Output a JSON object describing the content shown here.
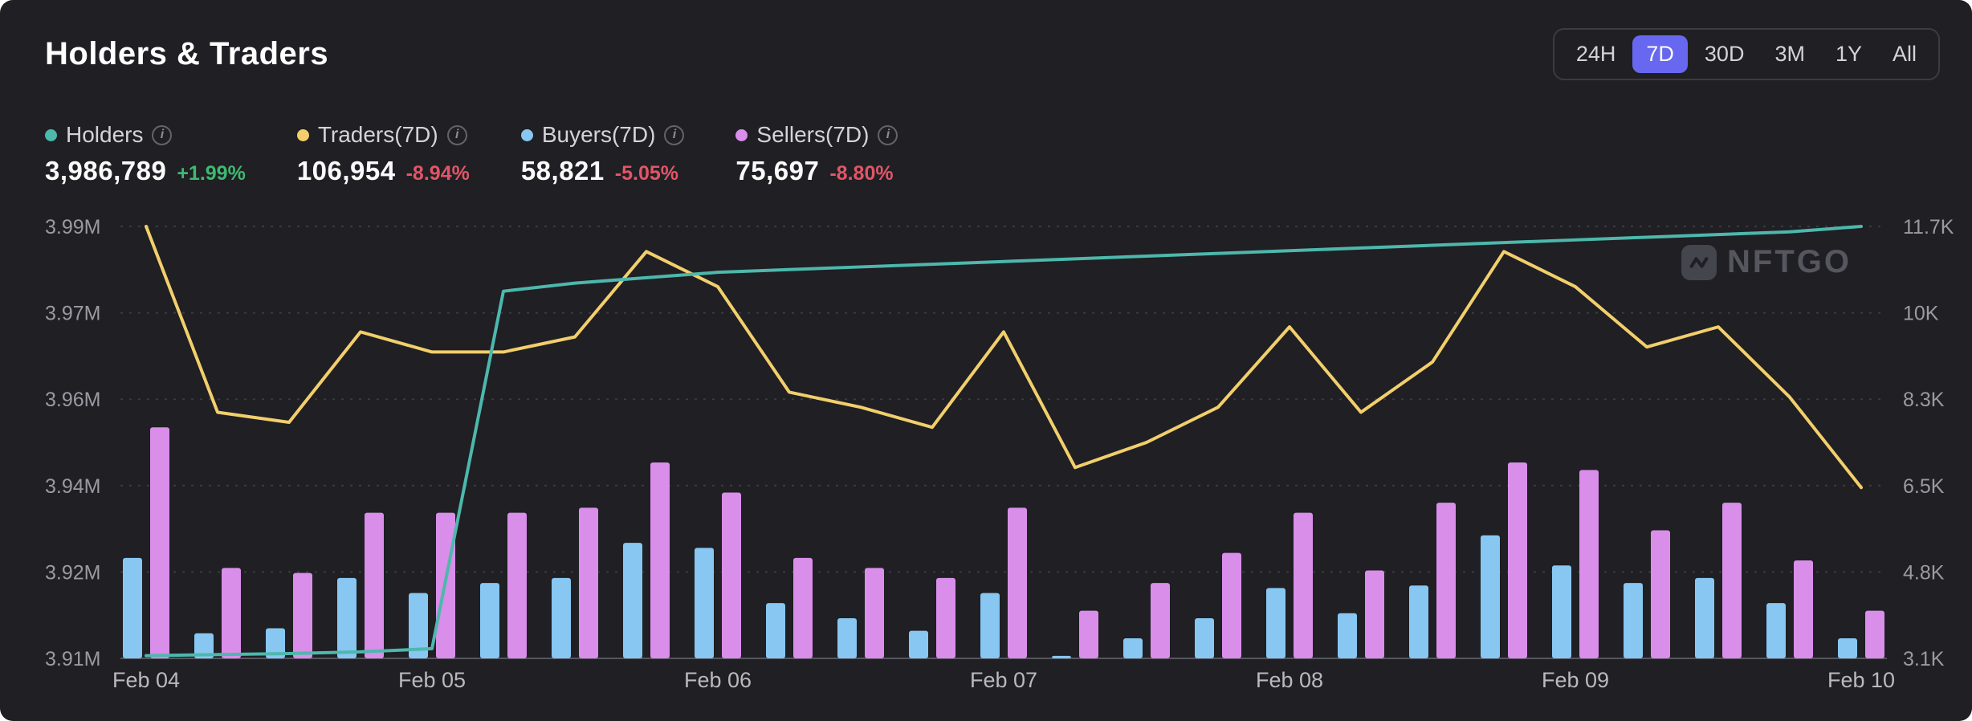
{
  "header": {
    "title": "Holders & Traders",
    "ranges": [
      {
        "label": "24H",
        "active": false
      },
      {
        "label": "7D",
        "active": true
      },
      {
        "label": "30D",
        "active": false
      },
      {
        "label": "3M",
        "active": false
      },
      {
        "label": "1Y",
        "active": false
      },
      {
        "label": "All",
        "active": false
      }
    ],
    "active_range": "7D"
  },
  "stats": [
    {
      "label": "Holders",
      "value": "3,986,789",
      "change": "+1.99%",
      "direction": "up",
      "color": "#4db8ac",
      "change_color": "#3dba6f"
    },
    {
      "label": "Traders(7D)",
      "value": "106,954",
      "change": "-8.94%",
      "direction": "down",
      "color": "#f2cf6b",
      "change_color": "#e25566"
    },
    {
      "label": "Buyers(7D)",
      "value": "58,821",
      "change": "-5.05%",
      "direction": "down",
      "color": "#87c7f2",
      "change_color": "#e25566"
    },
    {
      "label": "Sellers(7D)",
      "value": "75,697",
      "change": "-8.80%",
      "direction": "down",
      "color": "#d98ee9",
      "change_color": "#e25566"
    }
  ],
  "watermark": "NFTGO",
  "chart_data": {
    "type": "mixed",
    "x_tick_labels": [
      "Feb 04",
      "Feb 05",
      "Feb 06",
      "Feb 07",
      "Feb 08",
      "Feb 09",
      "Feb 10"
    ],
    "x_tick_indices": [
      0,
      4,
      8,
      12,
      16,
      20,
      24
    ],
    "left_axis": {
      "ticks": [
        "3.99M",
        "3.97M",
        "3.96M",
        "3.94M",
        "3.92M",
        "3.91M"
      ],
      "min": 3.91,
      "max": 3.99,
      "unit": "M",
      "applies_to": "Holders"
    },
    "right_axis": {
      "ticks": [
        "11.7K",
        "10K",
        "8.3K",
        "6.5K",
        "4.8K",
        "3.1K"
      ],
      "min": 3.1,
      "max": 11.7,
      "unit": "K",
      "applies_to": "Traders/Buyers/Sellers"
    },
    "grid": "dashed-horizontal",
    "legend_position": "top-left",
    "series": [
      {
        "name": "Holders",
        "type": "line",
        "axis": "left",
        "unit": "M",
        "color": "#4db8ac",
        "values": [
          3.9105,
          3.9107,
          3.9109,
          3.9112,
          3.9118,
          3.978,
          3.9795,
          3.9805,
          3.9815,
          3.982,
          3.9825,
          3.983,
          3.9835,
          3.984,
          3.9845,
          3.985,
          3.9855,
          3.986,
          3.9865,
          3.987,
          3.9875,
          3.988,
          3.9885,
          3.989,
          3.99
        ]
      },
      {
        "name": "Traders(7D)",
        "type": "line",
        "axis": "right",
        "unit": "K",
        "color": "#f2cf6b",
        "values": [
          11.7,
          8.0,
          7.8,
          9.6,
          9.2,
          9.2,
          9.5,
          11.2,
          10.5,
          8.4,
          8.1,
          7.7,
          9.6,
          6.9,
          7.4,
          8.1,
          9.7,
          8.0,
          9.0,
          11.2,
          10.5,
          9.3,
          9.7,
          8.3,
          6.5
        ]
      },
      {
        "name": "Buyers(7D)",
        "type": "bar",
        "axis": "right",
        "unit": "K",
        "color": "#87c7f2",
        "values": [
          5.1,
          3.6,
          3.7,
          4.7,
          4.4,
          4.6,
          4.7,
          5.4,
          5.3,
          4.2,
          3.9,
          3.65,
          4.4,
          3.15,
          3.5,
          3.9,
          4.5,
          4.0,
          4.55,
          5.55,
          4.95,
          4.6,
          4.7,
          4.2,
          3.5
        ]
      },
      {
        "name": "Sellers(7D)",
        "type": "bar",
        "axis": "right",
        "unit": "K",
        "color": "#d98ee9",
        "values": [
          7.7,
          4.9,
          4.8,
          6.0,
          6.0,
          6.0,
          6.1,
          7.0,
          6.4,
          5.1,
          4.9,
          4.7,
          6.1,
          4.05,
          4.6,
          5.2,
          6.0,
          4.85,
          6.2,
          7.0,
          6.85,
          5.65,
          6.2,
          5.05,
          4.05
        ]
      }
    ]
  }
}
